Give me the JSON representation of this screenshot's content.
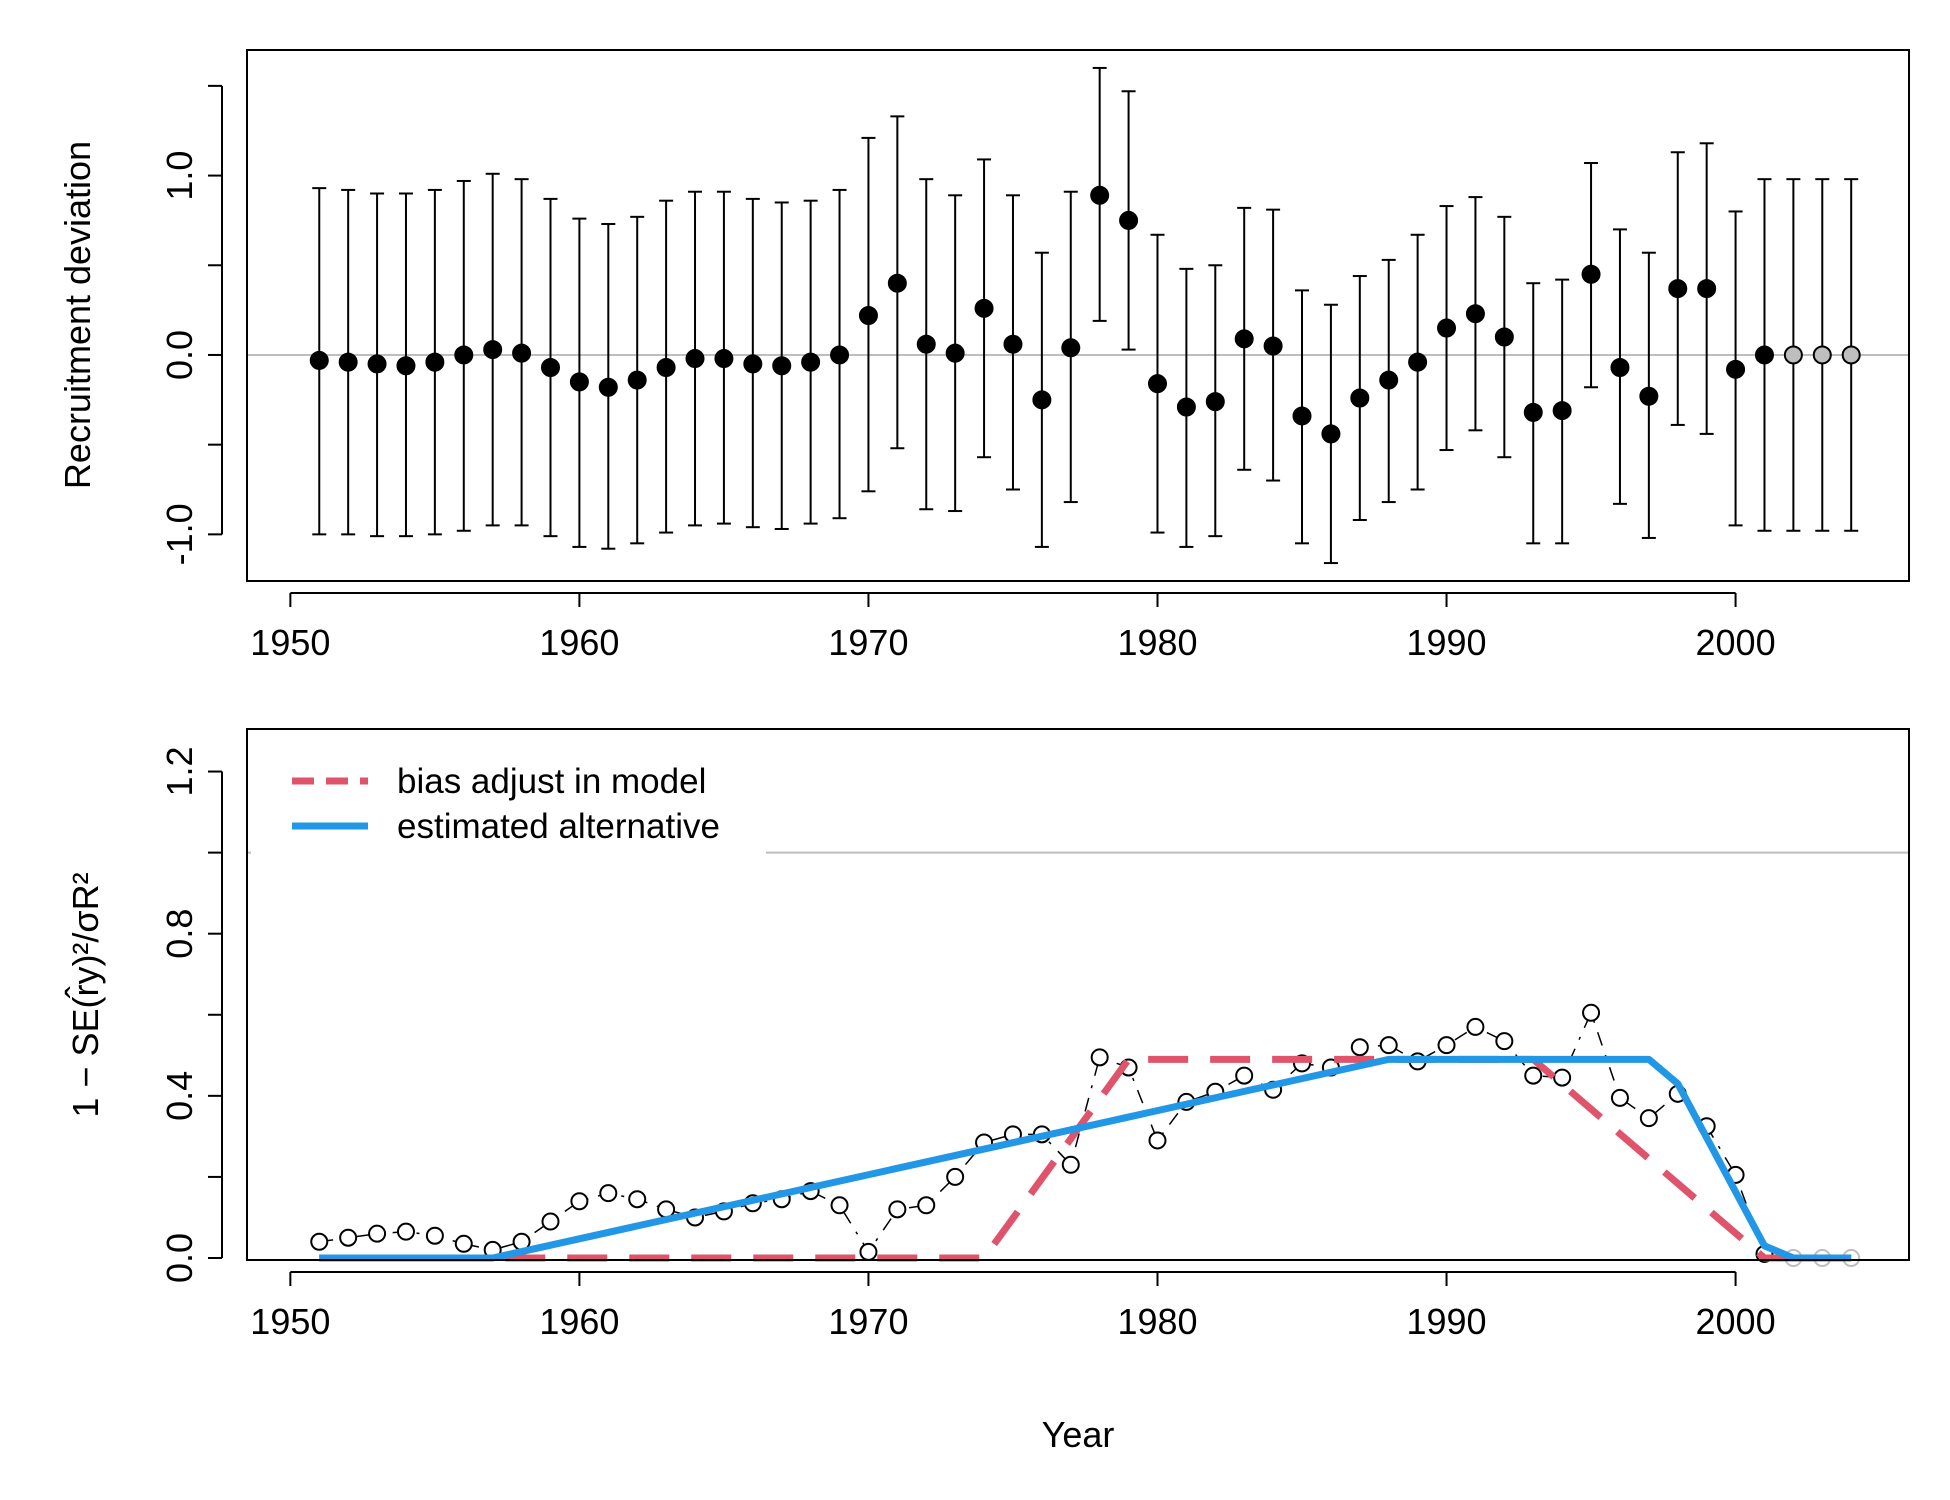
{
  "chart_data": [
    {
      "type": "scatter",
      "ylabel": "Recruitment deviation",
      "xlim": [
        1948.5,
        2006
      ],
      "ylim": [
        -1.26,
        1.7
      ],
      "xticks": [
        1950,
        1960,
        1970,
        1980,
        1990,
        2000
      ],
      "yticks": [
        -1.0,
        -0.5,
        0.0,
        0.5,
        1.0,
        1.5
      ],
      "ytick_labels": [
        "-1.0",
        "",
        "0.0",
        "",
        "1.0",
        ""
      ],
      "reference_line": 0,
      "colors": {
        "estimated": "#000000",
        "forecast": "#bebebe",
        "reference": "#bebebe"
      },
      "series": [
        {
          "x": [
            1951,
            1952,
            1953,
            1954,
            1955,
            1956,
            1957,
            1958,
            1959,
            1960,
            1961,
            1962,
            1963,
            1964,
            1965,
            1966,
            1967,
            1968,
            1969,
            1970,
            1971,
            1972,
            1973,
            1974,
            1975,
            1976,
            1977,
            1978,
            1979,
            1980,
            1981,
            1982,
            1983,
            1984,
            1985,
            1986,
            1987,
            1988,
            1989,
            1990,
            1991,
            1992,
            1993,
            1994,
            1995,
            1996,
            1997,
            1998,
            1999,
            2000,
            2001
          ],
          "values": [
            -0.03,
            -0.04,
            -0.05,
            -0.06,
            -0.04,
            0.0,
            0.03,
            0.01,
            -0.07,
            -0.15,
            -0.18,
            -0.14,
            -0.07,
            -0.02,
            -0.02,
            -0.05,
            -0.06,
            -0.04,
            0.0,
            0.22,
            0.4,
            0.06,
            0.01,
            0.26,
            0.06,
            -0.25,
            0.04,
            0.89,
            0.75,
            -0.16,
            -0.29,
            -0.26,
            0.09,
            0.05,
            -0.34,
            -0.44,
            -0.24,
            -0.14,
            -0.04,
            0.15,
            0.23,
            0.1,
            -0.32,
            -0.31,
            0.45,
            -0.07,
            -0.23,
            0.37,
            0.37,
            -0.08,
            0.0
          ],
          "lower": [
            -1.0,
            -1.0,
            -1.01,
            -1.01,
            -1.0,
            -0.98,
            -0.95,
            -0.95,
            -1.01,
            -1.07,
            -1.08,
            -1.05,
            -0.99,
            -0.95,
            -0.94,
            -0.96,
            -0.97,
            -0.94,
            -0.91,
            -0.76,
            -0.52,
            -0.86,
            -0.87,
            -0.57,
            -0.75,
            -1.07,
            -0.82,
            0.19,
            0.03,
            -0.99,
            -1.07,
            -1.01,
            -0.64,
            -0.7,
            -1.05,
            -1.16,
            -0.92,
            -0.82,
            -0.75,
            -0.53,
            -0.42,
            -0.57,
            -1.05,
            -1.05,
            -0.18,
            -0.83,
            -1.02,
            -0.39,
            -0.44,
            -0.95,
            -0.98
          ],
          "upper": [
            0.93,
            0.92,
            0.9,
            0.9,
            0.92,
            0.97,
            1.01,
            0.98,
            0.87,
            0.76,
            0.73,
            0.77,
            0.86,
            0.91,
            0.91,
            0.87,
            0.85,
            0.86,
            0.92,
            1.21,
            1.33,
            0.98,
            0.89,
            1.09,
            0.89,
            0.57,
            0.91,
            1.6,
            1.47,
            0.67,
            0.48,
            0.5,
            0.82,
            0.81,
            0.36,
            0.28,
            0.44,
            0.53,
            0.67,
            0.83,
            0.88,
            0.77,
            0.4,
            0.42,
            1.07,
            0.7,
            0.57,
            1.13,
            1.18,
            0.8,
            0.98
          ]
        },
        {
          "x": [
            2002,
            2003,
            2004
          ],
          "values": [
            0.0,
            0.0,
            0.0
          ],
          "lower": [
            -0.98,
            -0.98,
            -0.98
          ],
          "upper": [
            0.98,
            0.98,
            0.98
          ]
        }
      ]
    },
    {
      "type": "line",
      "xlabel": "Year",
      "ylabel_text": "1 − SE(r̂y)²/σR²",
      "xlim": [
        1948.5,
        2006
      ],
      "ylim": [
        0,
        1.3
      ],
      "xticks": [
        1950,
        1960,
        1970,
        1980,
        1990,
        2000
      ],
      "yticks": [
        0.0,
        0.2,
        0.4,
        0.6,
        0.8,
        1.0,
        1.2
      ],
      "ytick_labels": [
        "0.0",
        "",
        "0.4",
        "",
        "0.8",
        "",
        "1.2"
      ],
      "reference_line": 1,
      "legend": {
        "position": "top-left"
      },
      "colors": {
        "points": "#000000",
        "forecast": "#bebebe",
        "bias": "#df536b",
        "alternative": "#2297e6",
        "reference": "#bebebe"
      },
      "series": [
        {
          "x": [
            1951,
            1952,
            1953,
            1954,
            1955,
            1956,
            1957,
            1958,
            1959,
            1960,
            1961,
            1962,
            1963,
            1964,
            1965,
            1966,
            1967,
            1968,
            1969,
            1970,
            1971,
            1972,
            1973,
            1974,
            1975,
            1976,
            1977,
            1978,
            1979,
            1980,
            1981,
            1982,
            1983,
            1984,
            1985,
            1986,
            1987,
            1988,
            1989,
            1990,
            1991,
            1992,
            1993,
            1994,
            1995,
            1996,
            1997,
            1998,
            1999,
            2000,
            2001
          ],
          "values": [
            0.04,
            0.05,
            0.06,
            0.065,
            0.055,
            0.035,
            0.02,
            0.04,
            0.09,
            0.14,
            0.16,
            0.145,
            0.12,
            0.1,
            0.115,
            0.135,
            0.145,
            0.165,
            0.13,
            0.015,
            0.12,
            0.13,
            0.2,
            0.285,
            0.305,
            0.305,
            0.23,
            0.495,
            0.47,
            0.29,
            0.385,
            0.41,
            0.45,
            0.415,
            0.48,
            0.47,
            0.52,
            0.525,
            0.485,
            0.525,
            0.57,
            0.535,
            0.45,
            0.445,
            0.605,
            0.395,
            0.345,
            0.405,
            0.325,
            0.205,
            0.01
          ]
        },
        {
          "x": [
            2002,
            2003,
            2004
          ],
          "values": [
            0.0,
            0.0,
            0.0
          ]
        },
        {
          "name": "bias adjust in model",
          "x": [
            1951,
            1974,
            1979,
            1993,
            2001,
            2004
          ],
          "values": [
            0.0,
            0.0,
            0.49,
            0.49,
            0.0,
            0.0
          ]
        },
        {
          "name": "estimated alternative",
          "x": [
            1951,
            1957,
            1988,
            1997,
            1998,
            2001,
            2002,
            2004
          ],
          "values": [
            0.0,
            0.0,
            0.49,
            0.49,
            0.43,
            0.03,
            0.0,
            0.0
          ]
        }
      ]
    }
  ]
}
